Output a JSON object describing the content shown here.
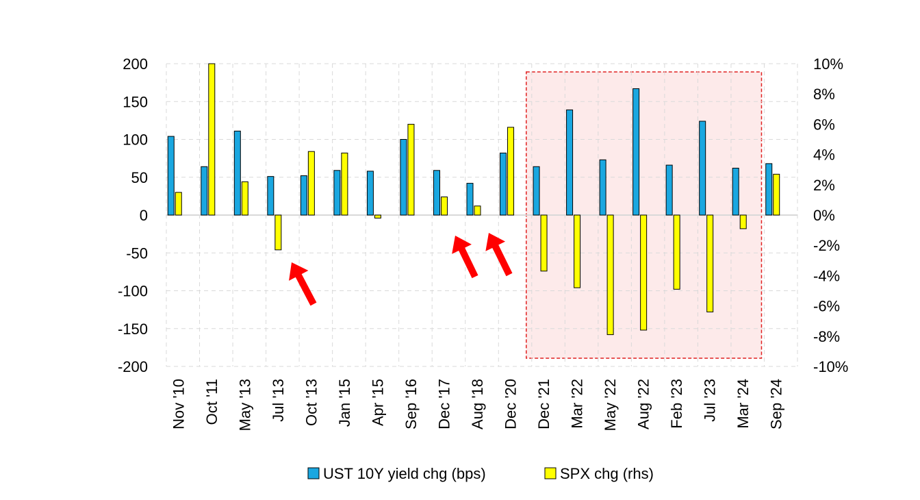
{
  "chart_data": {
    "type": "bar",
    "categories": [
      "Nov '10",
      "Oct '11",
      "May '13",
      "Jul '13",
      "Oct '13",
      "Jan '15",
      "Apr '15",
      "Sep '16",
      "Dec '17",
      "Aug '18",
      "Dec '20",
      "Dec '21",
      "Mar '22",
      "May '22",
      "Aug '22",
      "Feb '23",
      "Jul '23",
      "Mar '24",
      "Sep '24"
    ],
    "series": [
      {
        "name": "UST 10Y yield chg (bps)",
        "axis": "left",
        "color": "#1aa7e0",
        "values": [
          104,
          64,
          111,
          51,
          52,
          59,
          58,
          100,
          59,
          42,
          82,
          64,
          139,
          73,
          167,
          66,
          124,
          62,
          68
        ]
      },
      {
        "name": "SPX chg (rhs)",
        "axis": "right",
        "color": "#ffff00",
        "values": [
          1.5,
          10.0,
          2.2,
          -2.3,
          4.2,
          4.1,
          -0.2,
          6.0,
          1.2,
          0.6,
          5.8,
          -3.7,
          -4.8,
          -7.9,
          -7.6,
          -4.9,
          -6.4,
          -0.9,
          2.7
        ]
      }
    ],
    "yleft": {
      "min": -200,
      "max": 200,
      "step": 50,
      "ticks": [
        "200",
        "150",
        "100",
        "50",
        "0",
        "-50",
        "-100",
        "-150",
        "-200"
      ]
    },
    "yright": {
      "min": -10,
      "max": 10,
      "step": 2,
      "ticks": [
        "10%",
        "8%",
        "6%",
        "4%",
        "2%",
        "0%",
        "-2%",
        "-4%",
        "-6%",
        "-8%",
        "-10%"
      ]
    },
    "grid": true,
    "legend_position": "bottom",
    "highlight": {
      "from": "Dec '21",
      "to": "Mar '24",
      "fill": "#fdeaea",
      "stroke": "#e02020"
    },
    "annotations": [
      {
        "type": "arrow",
        "target": "Jul '13",
        "color": "#ff0000"
      },
      {
        "type": "arrow",
        "target": "Dec '17",
        "color": "#ff0000"
      },
      {
        "type": "arrow",
        "target": "Aug '18",
        "color": "#ff0000"
      }
    ]
  }
}
